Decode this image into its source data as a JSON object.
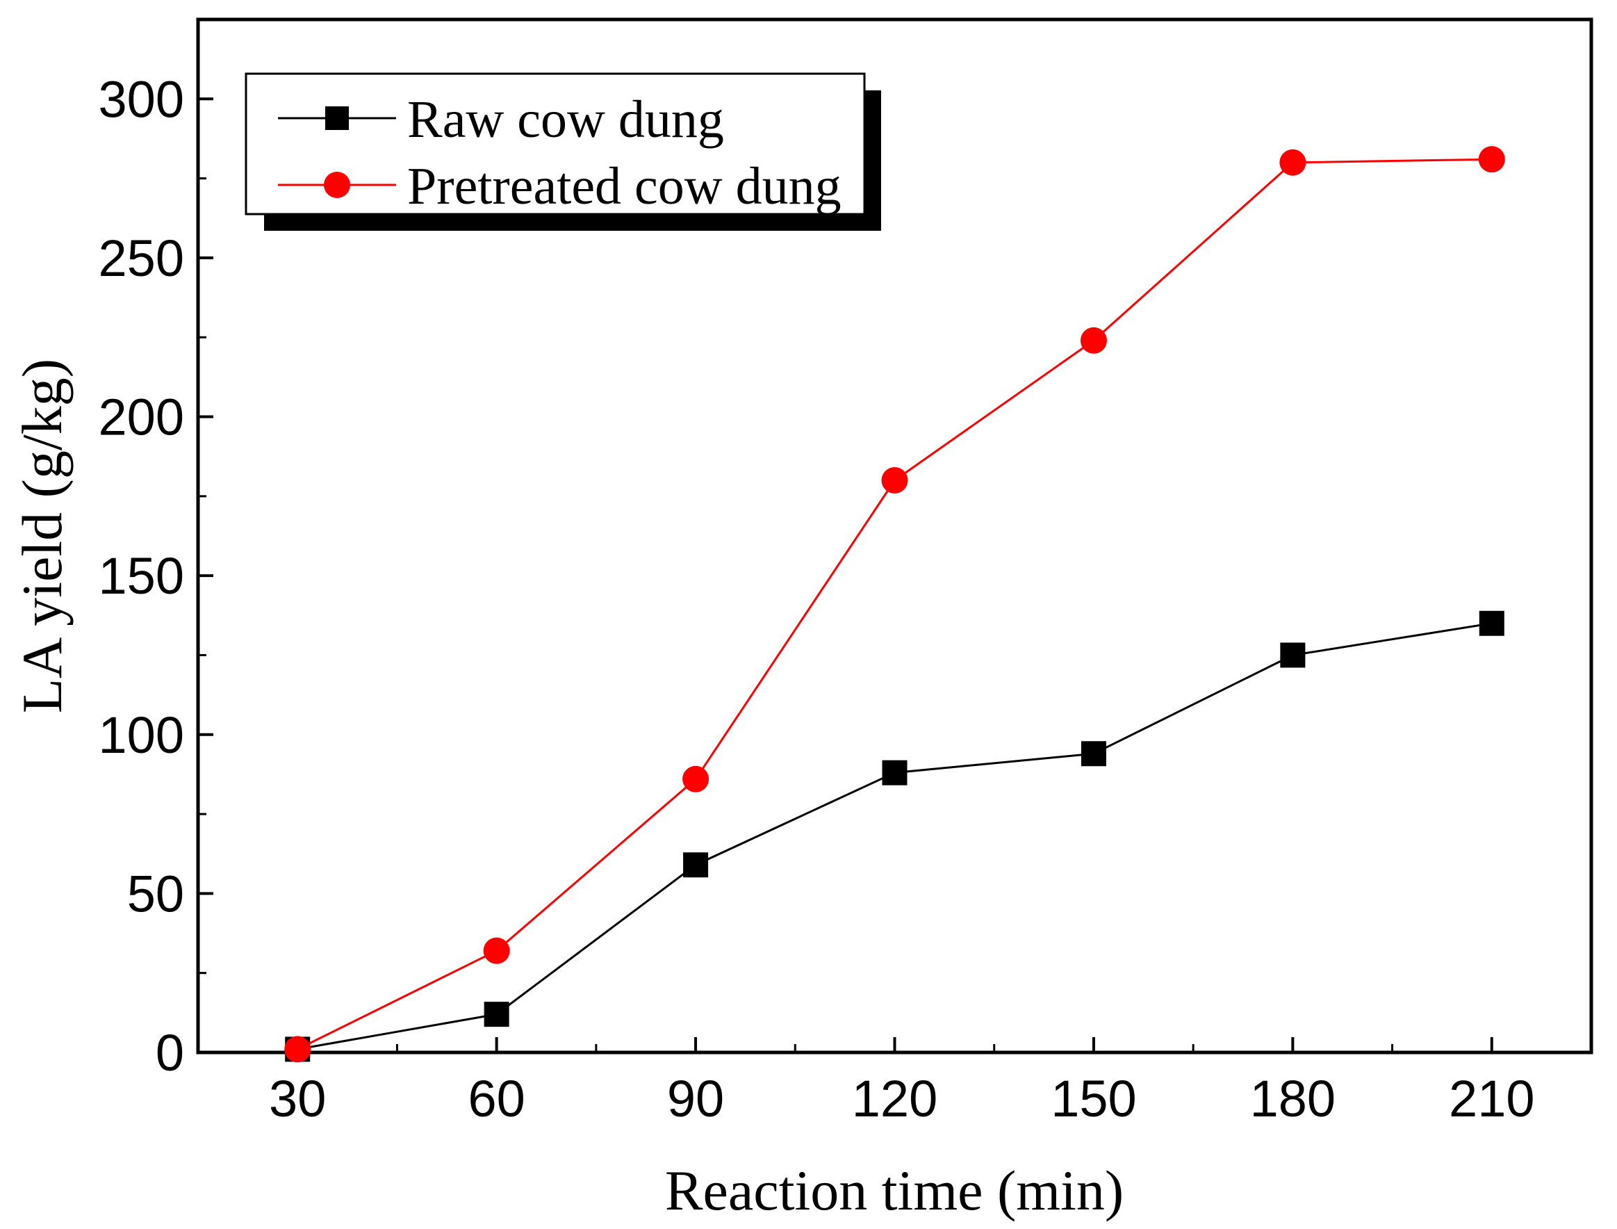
{
  "chart_data": {
    "type": "line",
    "title": "",
    "xlabel": "Reaction time (min)",
    "ylabel": "LA yield (g/kg)",
    "x": [
      30,
      60,
      90,
      120,
      150,
      180,
      210
    ],
    "xticks": [
      "30",
      "60",
      "90",
      "120",
      "150",
      "180",
      "210"
    ],
    "yticks": [
      "0",
      "50",
      "100",
      "150",
      "200",
      "250",
      "300"
    ],
    "xlim": [
      15,
      225
    ],
    "ylim": [
      0,
      325
    ],
    "grid": false,
    "legend_position": "top-left",
    "series": [
      {
        "name": "Raw cow dung",
        "marker": "square",
        "color": "#000000",
        "values": [
          1,
          12,
          59,
          88,
          94,
          125,
          135
        ]
      },
      {
        "name": "Pretreated cow dung",
        "marker": "circle",
        "color": "#ff0000",
        "values": [
          1,
          32,
          86,
          180,
          224,
          280,
          281
        ]
      }
    ]
  }
}
